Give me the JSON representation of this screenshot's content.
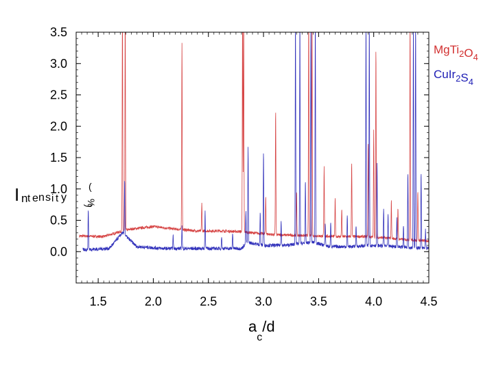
{
  "chart_data": {
    "type": "line",
    "xlabel": {
      "main": "a",
      "sub": "c",
      "rest": "/d"
    },
    "ylabel": {
      "glyphs": [
        "I",
        "n",
        "t",
        "e",
        "n",
        "s",
        "i",
        "t",
        "y",
        "(",
        "%",
        ")"
      ]
    },
    "xlim": [
      1.3,
      4.5
    ],
    "ylim": [
      -0.5,
      3.5
    ],
    "xticks": [
      "1.5",
      "2.0",
      "2.5",
      "3.0",
      "3.5",
      "4.0",
      "4.5"
    ],
    "xtick_values": [
      1.5,
      2.0,
      2.5,
      3.0,
      3.5,
      4.0,
      4.5
    ],
    "yticks": [
      "0.0",
      "0.5",
      "1.0",
      "1.5",
      "2.0",
      "2.5",
      "3.0",
      "3.5"
    ],
    "ytick_values": [
      0.0,
      0.5,
      1.0,
      1.5,
      2.0,
      2.5,
      3.0,
      3.5
    ],
    "grid": false,
    "legend_position": "right-top",
    "series": [
      {
        "name": "MgTi2O4",
        "label_parts": [
          [
            "Mg",
            false
          ],
          [
            "Ti",
            false
          ],
          [
            "2",
            true
          ],
          [
            "O",
            false
          ],
          [
            "4",
            true
          ]
        ],
        "color": "#d23030",
        "x_start": 1.33,
        "baseline": [
          [
            1.33,
            0.25
          ],
          [
            1.55,
            0.24
          ],
          [
            1.7,
            0.32
          ],
          [
            1.8,
            0.36
          ],
          [
            2.0,
            0.4
          ],
          [
            2.2,
            0.36
          ],
          [
            2.4,
            0.33
          ],
          [
            2.6,
            0.33
          ],
          [
            2.8,
            0.32
          ],
          [
            2.9,
            0.3
          ],
          [
            3.1,
            0.27
          ],
          [
            3.3,
            0.26
          ],
          [
            3.5,
            0.25
          ],
          [
            3.7,
            0.24
          ],
          [
            3.9,
            0.24
          ],
          [
            4.1,
            0.22
          ],
          [
            4.3,
            0.19
          ],
          [
            4.5,
            0.17
          ]
        ],
        "peaks": [
          [
            1.72,
            3.6
          ],
          [
            1.745,
            3.6
          ],
          [
            2.26,
            3.0
          ],
          [
            2.44,
            0.45
          ],
          [
            2.81,
            3.6
          ],
          [
            2.82,
            3.6
          ],
          [
            3.02,
            0.6
          ],
          [
            3.11,
            2.0
          ],
          [
            3.3,
            0.7
          ],
          [
            3.41,
            3.6
          ],
          [
            3.44,
            3.6
          ],
          [
            3.55,
            1.1
          ],
          [
            3.65,
            0.6
          ],
          [
            3.71,
            0.45
          ],
          [
            3.8,
            1.2
          ],
          [
            3.95,
            1.5
          ],
          [
            4.0,
            1.7
          ],
          [
            4.02,
            3.0
          ],
          [
            4.16,
            0.6
          ],
          [
            4.22,
            0.5
          ],
          [
            4.33,
            3.6
          ],
          [
            4.4,
            0.8
          ]
        ]
      },
      {
        "name": "CuIr2S4",
        "label_parts": [
          [
            "Cu",
            false
          ],
          [
            "Ir",
            false
          ],
          [
            "2",
            true
          ],
          [
            "S",
            false
          ],
          [
            "4",
            true
          ]
        ],
        "color": "#1c1cb4",
        "x_start": 1.36,
        "baseline": [
          [
            1.36,
            0.03
          ],
          [
            1.6,
            0.05
          ],
          [
            1.72,
            0.3
          ],
          [
            1.85,
            0.08
          ],
          [
            2.1,
            0.05
          ],
          [
            2.4,
            0.05
          ],
          [
            2.7,
            0.05
          ],
          [
            2.8,
            0.05
          ],
          [
            2.85,
            0.15
          ],
          [
            3.0,
            0.1
          ],
          [
            3.2,
            0.1
          ],
          [
            3.45,
            0.15
          ],
          [
            3.6,
            0.08
          ],
          [
            3.8,
            0.08
          ],
          [
            4.0,
            0.1
          ],
          [
            4.2,
            0.08
          ],
          [
            4.4,
            0.06
          ],
          [
            4.5,
            0.05
          ]
        ],
        "peaks": [
          [
            1.41,
            0.65
          ],
          [
            1.74,
            0.9
          ],
          [
            2.18,
            0.2
          ],
          [
            2.26,
            0.35
          ],
          [
            2.47,
            0.6
          ],
          [
            2.62,
            0.2
          ],
          [
            2.72,
            0.25
          ],
          [
            2.84,
            0.5
          ],
          [
            2.86,
            1.5
          ],
          [
            2.97,
            0.5
          ],
          [
            3.0,
            1.5
          ],
          [
            3.16,
            0.4
          ],
          [
            3.29,
            3.6
          ],
          [
            3.33,
            3.6
          ],
          [
            3.38,
            1.0
          ],
          [
            3.43,
            3.6
          ],
          [
            3.47,
            3.6
          ],
          [
            3.56,
            0.35
          ],
          [
            3.61,
            0.4
          ],
          [
            3.76,
            0.5
          ],
          [
            3.84,
            0.35
          ],
          [
            3.93,
            3.6
          ],
          [
            3.96,
            3.6
          ],
          [
            4.03,
            1.3
          ],
          [
            4.09,
            0.6
          ],
          [
            4.13,
            0.5
          ],
          [
            4.21,
            0.45
          ],
          [
            4.27,
            0.35
          ],
          [
            4.31,
            1.2
          ],
          [
            4.36,
            3.6
          ],
          [
            4.38,
            3.6
          ],
          [
            4.43,
            1.2
          ],
          [
            4.47,
            0.3
          ]
        ]
      }
    ]
  }
}
